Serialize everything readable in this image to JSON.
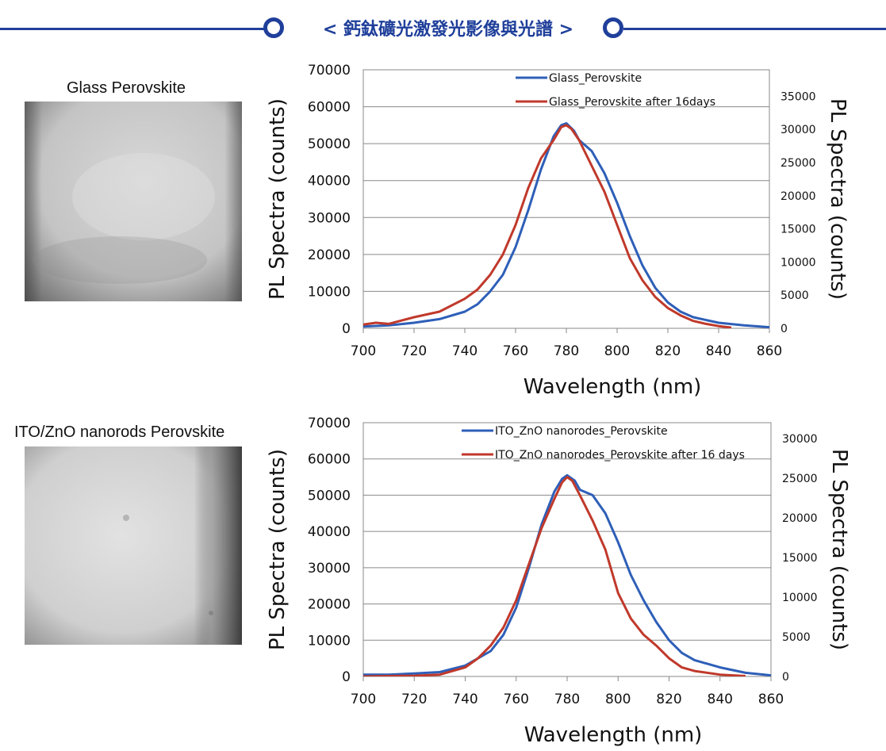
{
  "banner": {
    "title": "< 鈣鈦礦光激發光影像與光譜 >",
    "color": "#1f3f9a"
  },
  "photos": [
    {
      "label": "Glass Perovskite",
      "icon": "micrograph-image"
    },
    {
      "label": "ITO/ZnO nanorods Perovskite",
      "icon": "micrograph-image"
    }
  ],
  "chart_data": [
    {
      "type": "line",
      "xlabel": "Wavelength (nm)",
      "ylabel": "PL Spectra (counts)",
      "y2label": "PL Spectra (counts)",
      "xlim": [
        700,
        860
      ],
      "ylim": [
        0,
        70000
      ],
      "y2lim": [
        0,
        39000
      ],
      "xticks": [
        700,
        720,
        740,
        760,
        780,
        800,
        820,
        840,
        860
      ],
      "yticks": [
        0,
        10000,
        20000,
        30000,
        40000,
        50000,
        60000,
        70000
      ],
      "y2ticks": [
        0,
        5000,
        10000,
        15000,
        20000,
        25000,
        30000,
        35000
      ],
      "grid": true,
      "legend_position": "top-center",
      "series": [
        {
          "name": "Glass_Perovskite",
          "color": "#2e5fb8",
          "axis": "left",
          "x": [
            700,
            710,
            720,
            730,
            740,
            745,
            750,
            755,
            760,
            765,
            770,
            775,
            778,
            780,
            783,
            785,
            790,
            795,
            800,
            805,
            810,
            815,
            820,
            825,
            830,
            840,
            850,
            860
          ],
          "y": [
            500,
            800,
            1500,
            2500,
            4500,
            6500,
            10000,
            14500,
            22000,
            32000,
            43000,
            52000,
            55000,
            55500,
            53500,
            51000,
            48000,
            42000,
            34000,
            25000,
            17000,
            11000,
            7000,
            4500,
            3000,
            1500,
            800,
            300
          ]
        },
        {
          "name": "Glass_Perovskite after 16days",
          "color": "#c0392b",
          "axis": "left",
          "x": [
            700,
            705,
            710,
            720,
            730,
            740,
            745,
            750,
            755,
            760,
            765,
            770,
            775,
            778,
            780,
            782,
            785,
            790,
            795,
            800,
            805,
            810,
            815,
            820,
            825,
            830,
            835,
            840,
            845
          ],
          "y": [
            1000,
            1500,
            1200,
            3000,
            4500,
            8000,
            10500,
            14500,
            20000,
            28000,
            38000,
            46000,
            51000,
            54500,
            55000,
            54000,
            51000,
            44000,
            37000,
            28000,
            19000,
            13000,
            8500,
            5500,
            3500,
            2000,
            1200,
            600,
            200
          ]
        }
      ]
    },
    {
      "type": "line",
      "xlabel": "Wavelength (nm)",
      "ylabel": "PL Spectra (counts)",
      "y2label": "PL Spectra (counts)",
      "xlim": [
        700,
        860
      ],
      "ylim": [
        0,
        70000
      ],
      "y2lim": [
        0,
        32000
      ],
      "xticks": [
        700,
        720,
        740,
        760,
        780,
        800,
        820,
        840,
        860
      ],
      "yticks": [
        0,
        10000,
        20000,
        30000,
        40000,
        50000,
        60000,
        70000
      ],
      "y2ticks": [
        0,
        5000,
        10000,
        15000,
        20000,
        25000,
        30000
      ],
      "grid": true,
      "legend_position": "top-right",
      "series": [
        {
          "name": "ITO_ZnO nanorodes_Perovskite",
          "color": "#2e5fb8",
          "axis": "left",
          "x": [
            700,
            710,
            720,
            730,
            740,
            750,
            755,
            760,
            765,
            770,
            775,
            778,
            780,
            783,
            785,
            790,
            795,
            800,
            805,
            810,
            815,
            820,
            825,
            830,
            840,
            850,
            860
          ],
          "y": [
            500,
            500,
            800,
            1200,
            3000,
            7000,
            11500,
            19000,
            30000,
            42000,
            51000,
            54500,
            55500,
            54000,
            51500,
            50000,
            45000,
            37000,
            28000,
            21000,
            15000,
            10000,
            6500,
            4500,
            2500,
            1000,
            300
          ]
        },
        {
          "name": "ITO_ZnO nanorodes_Perovskite after 16 days",
          "color": "#c0392b",
          "axis": "left",
          "x": [
            700,
            720,
            730,
            740,
            745,
            750,
            755,
            760,
            765,
            770,
            775,
            778,
            780,
            782,
            785,
            790,
            795,
            800,
            805,
            810,
            815,
            820,
            825,
            830,
            840,
            850
          ],
          "y": [
            0,
            200,
            500,
            2500,
            5000,
            8500,
            13500,
            21000,
            31000,
            41000,
            49000,
            53500,
            55000,
            54000,
            50000,
            43000,
            35000,
            23000,
            16000,
            11500,
            8500,
            5000,
            2500,
            1500,
            500,
            100
          ]
        }
      ]
    }
  ]
}
